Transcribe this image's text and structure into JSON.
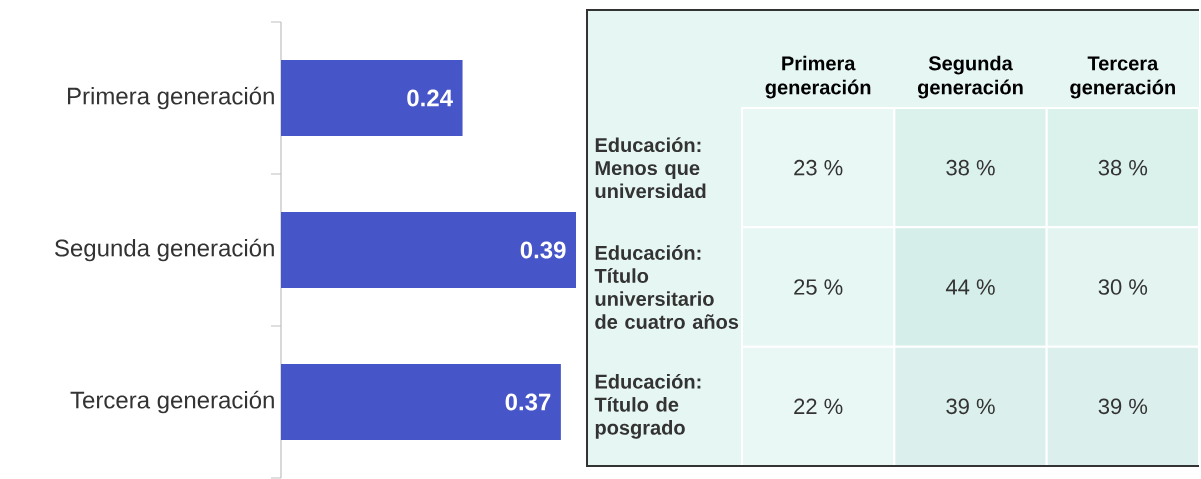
{
  "chart_data": [
    {
      "type": "bar",
      "orientation": "horizontal",
      "relative": false,
      "categories": [
        "Primera generación",
        "Segunda generación",
        "Tercera generación"
      ],
      "values": [
        0.24,
        0.39,
        0.37
      ],
      "color": "#4655c8",
      "data_labels": true
    },
    {
      "type": "heatmap",
      "categories": [
        "Primera generación",
        "Segunda generación",
        "Tercera generación"
      ],
      "y_categories": [
        "Educación: Menos que universidad",
        "Educación: Título universitario de cuatro años",
        "Educación: Título de posgrado"
      ],
      "cells": [
        [
          23,
          38,
          38
        ],
        [
          25,
          44,
          30
        ],
        [
          22,
          39,
          39
        ]
      ],
      "cell_labels": [
        [
          "23 %",
          "38 %",
          "38 %"
        ],
        [
          "25 %",
          "44 %",
          "30 %"
        ],
        [
          "22 %",
          "39 %",
          "39 %"
        ]
      ]
    }
  ]
}
